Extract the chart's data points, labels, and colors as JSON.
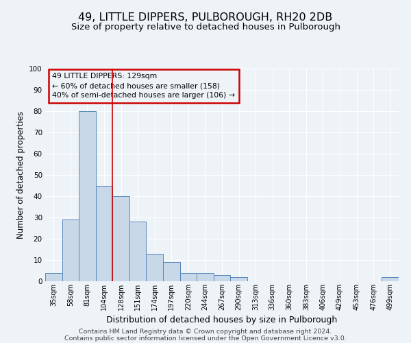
{
  "title": "49, LITTLE DIPPERS, PULBOROUGH, RH20 2DB",
  "subtitle": "Size of property relative to detached houses in Pulborough",
  "xlabel": "Distribution of detached houses by size in Pulborough",
  "ylabel": "Number of detached properties",
  "bin_labels": [
    "35sqm",
    "58sqm",
    "81sqm",
    "104sqm",
    "128sqm",
    "151sqm",
    "174sqm",
    "197sqm",
    "220sqm",
    "244sqm",
    "267sqm",
    "290sqm",
    "313sqm",
    "336sqm",
    "360sqm",
    "383sqm",
    "406sqm",
    "429sqm",
    "453sqm",
    "476sqm",
    "499sqm"
  ],
  "bar_values": [
    4,
    29,
    80,
    45,
    40,
    28,
    13,
    9,
    4,
    4,
    3,
    2,
    0,
    0,
    0,
    0,
    0,
    0,
    0,
    0,
    2
  ],
  "bar_color": "#c8d8e8",
  "bar_edge_color": "#5588bb",
  "ylim": [
    0,
    100
  ],
  "yticks": [
    0,
    10,
    20,
    30,
    40,
    50,
    60,
    70,
    80,
    90,
    100
  ],
  "property_bin_index": 4,
  "vline_color": "#cc0000",
  "annotation_lines": [
    "49 LITTLE DIPPERS: 129sqm",
    "← 60% of detached houses are smaller (158)",
    "40% of semi-detached houses are larger (106) →"
  ],
  "annotation_box_color": "#cc0000",
  "footer_line1": "Contains HM Land Registry data © Crown copyright and database right 2024.",
  "footer_line2": "Contains public sector information licensed under the Open Government Licence v3.0.",
  "background_color": "#eef3f8",
  "grid_color": "#ffffff"
}
